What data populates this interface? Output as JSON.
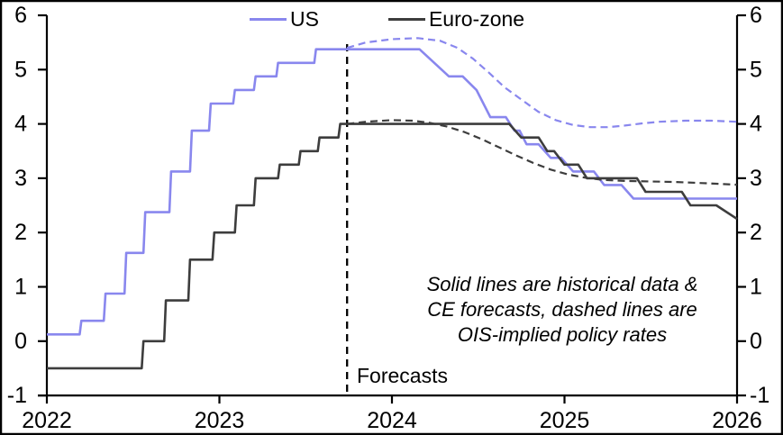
{
  "chart_data": {
    "type": "line",
    "title": "",
    "xlabel": "",
    "ylabel": "",
    "xlim": [
      2022,
      2026
    ],
    "ylim": [
      -1,
      6
    ],
    "grid": false,
    "dual_y_axis": true,
    "x_ticks": [
      "2022",
      "2023",
      "2024",
      "2025",
      "2026"
    ],
    "x_tick_values": [
      2022,
      2023,
      2024,
      2025,
      2026
    ],
    "y_ticks": [
      "-1",
      "0",
      "1",
      "2",
      "3",
      "4",
      "5",
      "6"
    ],
    "y_tick_values": [
      -1,
      0,
      1,
      2,
      3,
      4,
      5,
      6
    ],
    "forecast_line_x": 2023.74,
    "forecast_label": "Forecasts",
    "annotation": [
      "Solid lines are historical data &",
      "CE forecasts, dashed lines are",
      "OIS-implied policy rates"
    ],
    "colors": {
      "us": "#8987ee",
      "euro_zone": "#3d3d3d",
      "axis": "#000000"
    },
    "legend": [
      {
        "label": "US",
        "color": "#8987ee"
      },
      {
        "label": "Euro-zone",
        "color": "#3d3d3d"
      }
    ],
    "series": [
      {
        "name": "US policy rate (historical data & CE forecast)",
        "color": "#8987ee",
        "dashed": false,
        "points": [
          [
            2022.0,
            0.125
          ],
          [
            2022.19,
            0.125
          ],
          [
            2022.2,
            0.375
          ],
          [
            2022.33,
            0.375
          ],
          [
            2022.34,
            0.875
          ],
          [
            2022.45,
            0.875
          ],
          [
            2022.46,
            1.625
          ],
          [
            2022.56,
            1.625
          ],
          [
            2022.57,
            2.375
          ],
          [
            2022.71,
            2.375
          ],
          [
            2022.72,
            3.125
          ],
          [
            2022.83,
            3.125
          ],
          [
            2022.84,
            3.875
          ],
          [
            2022.94,
            3.875
          ],
          [
            2022.95,
            4.375
          ],
          [
            2023.08,
            4.375
          ],
          [
            2023.09,
            4.625
          ],
          [
            2023.2,
            4.625
          ],
          [
            2023.21,
            4.875
          ],
          [
            2023.33,
            4.875
          ],
          [
            2023.34,
            5.125
          ],
          [
            2023.55,
            5.125
          ],
          [
            2023.56,
            5.375
          ],
          [
            2024.16,
            5.375
          ],
          [
            2024.33,
            4.875
          ],
          [
            2024.41,
            4.875
          ],
          [
            2024.49,
            4.625
          ],
          [
            2024.57,
            4.125
          ],
          [
            2024.66,
            4.125
          ],
          [
            2024.71,
            3.875
          ],
          [
            2024.74,
            3.875
          ],
          [
            2024.78,
            3.625
          ],
          [
            2024.85,
            3.625
          ],
          [
            2024.92,
            3.375
          ],
          [
            2024.98,
            3.375
          ],
          [
            2025.05,
            3.125
          ],
          [
            2025.17,
            3.125
          ],
          [
            2025.23,
            2.875
          ],
          [
            2025.33,
            2.875
          ],
          [
            2025.4,
            2.625
          ],
          [
            2026.0,
            2.625
          ]
        ]
      },
      {
        "name": "Euro-zone policy rate (historical data & CE forecast)",
        "color": "#3d3d3d",
        "dashed": false,
        "points": [
          [
            2022.0,
            -0.5
          ],
          [
            2022.55,
            -0.5
          ],
          [
            2022.56,
            0.0
          ],
          [
            2022.68,
            0.0
          ],
          [
            2022.69,
            0.75
          ],
          [
            2022.82,
            0.75
          ],
          [
            2022.83,
            1.5
          ],
          [
            2022.96,
            1.5
          ],
          [
            2022.97,
            2.0
          ],
          [
            2023.09,
            2.0
          ],
          [
            2023.1,
            2.5
          ],
          [
            2023.2,
            2.5
          ],
          [
            2023.21,
            3.0
          ],
          [
            2023.34,
            3.0
          ],
          [
            2023.35,
            3.25
          ],
          [
            2023.46,
            3.25
          ],
          [
            2023.47,
            3.5
          ],
          [
            2023.57,
            3.5
          ],
          [
            2023.58,
            3.75
          ],
          [
            2023.69,
            3.75
          ],
          [
            2023.7,
            4.0
          ],
          [
            2024.68,
            4.0
          ],
          [
            2024.75,
            3.75
          ],
          [
            2024.85,
            3.75
          ],
          [
            2024.9,
            3.5
          ],
          [
            2024.94,
            3.5
          ],
          [
            2025.0,
            3.25
          ],
          [
            2025.08,
            3.25
          ],
          [
            2025.13,
            3.0
          ],
          [
            2025.42,
            3.0
          ],
          [
            2025.47,
            2.75
          ],
          [
            2025.68,
            2.75
          ],
          [
            2025.73,
            2.5
          ],
          [
            2025.88,
            2.5
          ],
          [
            2026.0,
            2.25
          ]
        ]
      },
      {
        "name": "US OIS-implied policy rate",
        "color": "#8987ee",
        "dashed": true,
        "points": [
          [
            2023.74,
            5.4
          ],
          [
            2023.85,
            5.5
          ],
          [
            2024.0,
            5.56
          ],
          [
            2024.15,
            5.58
          ],
          [
            2024.28,
            5.53
          ],
          [
            2024.38,
            5.4
          ],
          [
            2024.47,
            5.2
          ],
          [
            2024.56,
            4.95
          ],
          [
            2024.65,
            4.68
          ],
          [
            2024.75,
            4.45
          ],
          [
            2024.85,
            4.22
          ],
          [
            2024.95,
            4.07
          ],
          [
            2025.05,
            3.98
          ],
          [
            2025.15,
            3.94
          ],
          [
            2025.25,
            3.94
          ],
          [
            2025.35,
            3.97
          ],
          [
            2025.45,
            4.01
          ],
          [
            2025.55,
            4.04
          ],
          [
            2025.7,
            4.06
          ],
          [
            2025.85,
            4.06
          ],
          [
            2026.0,
            4.04
          ]
        ]
      },
      {
        "name": "Euro-zone OIS-implied policy rate",
        "color": "#3d3d3d",
        "dashed": true,
        "points": [
          [
            2023.74,
            4.0
          ],
          [
            2023.85,
            4.04
          ],
          [
            2024.0,
            4.07
          ],
          [
            2024.12,
            4.06
          ],
          [
            2024.22,
            4.02
          ],
          [
            2024.32,
            3.95
          ],
          [
            2024.42,
            3.85
          ],
          [
            2024.52,
            3.72
          ],
          [
            2024.62,
            3.57
          ],
          [
            2024.72,
            3.42
          ],
          [
            2024.82,
            3.28
          ],
          [
            2024.92,
            3.16
          ],
          [
            2025.02,
            3.07
          ],
          [
            2025.12,
            3.01
          ],
          [
            2025.22,
            2.97
          ],
          [
            2025.35,
            2.95
          ],
          [
            2025.5,
            2.94
          ],
          [
            2025.65,
            2.93
          ],
          [
            2025.8,
            2.91
          ],
          [
            2026.0,
            2.88
          ]
        ]
      }
    ]
  }
}
